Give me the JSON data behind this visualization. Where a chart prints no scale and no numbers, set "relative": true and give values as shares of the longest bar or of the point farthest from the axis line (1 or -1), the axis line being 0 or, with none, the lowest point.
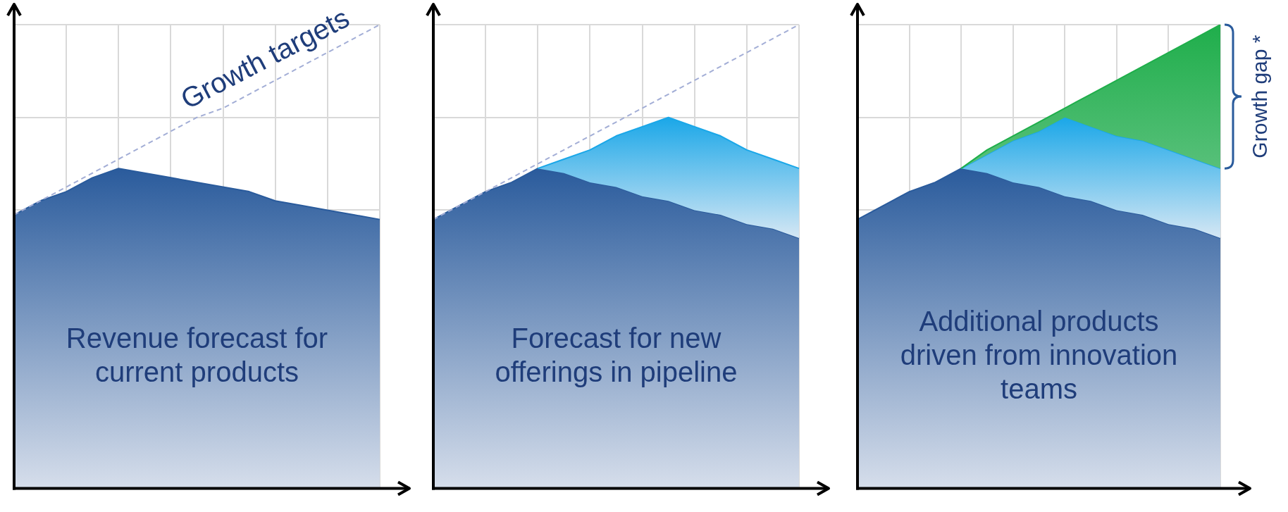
{
  "chart_data": [
    {
      "type": "area",
      "relative": true,
      "grid": true,
      "categories": [
        null,
        null,
        null,
        null,
        null,
        null,
        null,
        null,
        null,
        null,
        null,
        null,
        null,
        null,
        null
      ],
      "series": [
        {
          "color": "#2a5b9c",
          "values": [
            0.59,
            0.62,
            0.64,
            0.67,
            0.69,
            0.68,
            0.67,
            0.66,
            0.65,
            0.64,
            0.62,
            0.61,
            0.6,
            0.59,
            0.58
          ]
        },
        {
          "type": "line",
          "line_style": "dashed",
          "color": "#a3aed6",
          "values": [
            0.59,
            0.62,
            0.65,
            0.68,
            0.71,
            0.74,
            0.77,
            0.8,
            0.82,
            0.85,
            0.88,
            0.91,
            0.94,
            0.97,
            1.0
          ]
        }
      ],
      "annotations": [
        "Revenue forecast for\ncurrent products",
        "Growth targets"
      ]
    },
    {
      "type": "area",
      "relative": true,
      "grid": true,
      "categories": [
        null,
        null,
        null,
        null,
        null,
        null,
        null,
        null,
        null,
        null,
        null,
        null,
        null,
        null,
        null
      ],
      "series": [
        {
          "color": "#2a5b9c",
          "values": [
            0.58,
            0.61,
            0.64,
            0.66,
            0.69,
            0.68,
            0.66,
            0.65,
            0.63,
            0.62,
            0.6,
            0.59,
            0.57,
            0.56,
            0.54
          ]
        },
        {
          "color": "#1aa7e8",
          "values": [
            null,
            null,
            null,
            null,
            0.69,
            0.71,
            0.73,
            0.76,
            0.78,
            0.8,
            0.78,
            0.76,
            0.73,
            0.71,
            0.69
          ]
        },
        {
          "type": "line",
          "line_style": "dashed",
          "color": "#a3aed6",
          "values": [
            0.58,
            0.61,
            0.64,
            0.67,
            0.7,
            0.73,
            0.76,
            0.79,
            0.82,
            0.85,
            0.88,
            0.91,
            0.94,
            0.97,
            1.0
          ]
        }
      ],
      "annotations": [
        "Forecast for new\nofferings in pipeline"
      ]
    },
    {
      "type": "area",
      "relative": true,
      "grid": true,
      "categories": [
        null,
        null,
        null,
        null,
        null,
        null,
        null,
        null,
        null,
        null,
        null,
        null,
        null,
        null,
        null
      ],
      "series": [
        {
          "color": "#2a5b9c",
          "values": [
            0.58,
            0.61,
            0.64,
            0.66,
            0.69,
            0.68,
            0.66,
            0.65,
            0.63,
            0.62,
            0.6,
            0.59,
            0.57,
            0.56,
            0.54
          ]
        },
        {
          "color": "#1aa7e8",
          "values": [
            null,
            null,
            null,
            null,
            0.69,
            0.72,
            0.75,
            0.77,
            0.8,
            0.78,
            0.76,
            0.75,
            0.73,
            0.71,
            0.69
          ]
        },
        {
          "color": "#1fae4b",
          "values": [
            null,
            null,
            null,
            null,
            0.69,
            0.73,
            0.76,
            0.79,
            0.82,
            0.85,
            0.88,
            0.91,
            0.94,
            0.97,
            1.0
          ]
        }
      ],
      "annotations": [
        "Additional products\ndriven from innovation\nteams",
        "Growth gap *"
      ]
    }
  ]
}
